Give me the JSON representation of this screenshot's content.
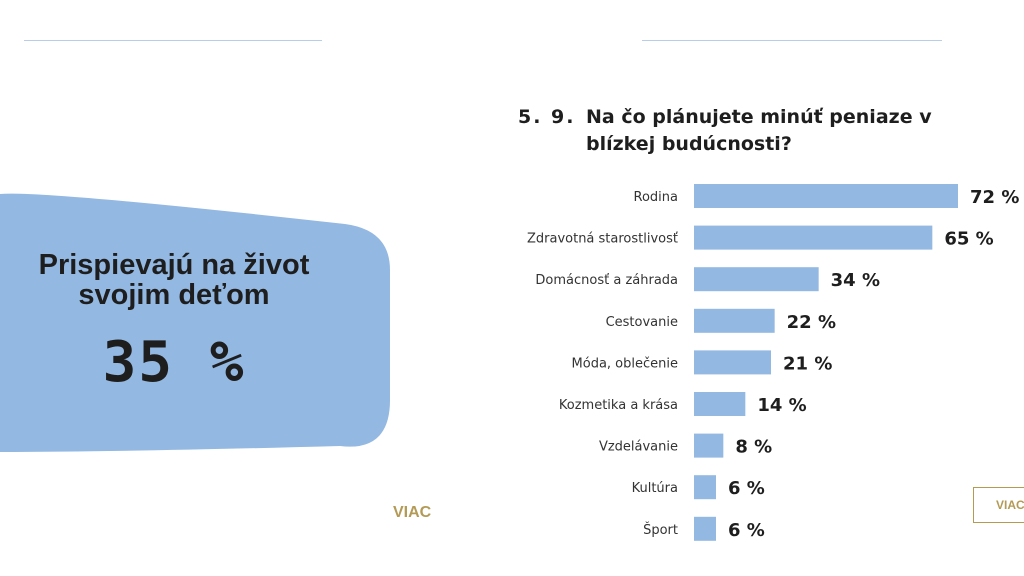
{
  "left_panel": {
    "label_line1": "Prispievajú na život",
    "label_line2": "svojim deťom",
    "value": "35 %",
    "more_link": "VIAC",
    "shape_color": "#93b8e2"
  },
  "right_panel": {
    "more_button": "VIAC"
  },
  "chart_data": {
    "type": "bar",
    "orientation": "horizontal",
    "number": "5. 9.",
    "title": "Na čo plánujete minúť peniaze v blízkej budúcnosti?",
    "categories": [
      "Rodina",
      "Zdravotná starostlivosť",
      "Domácnosť a záhrada",
      "Cestovanie",
      "Móda, oblečenie",
      "Kozmetika a krása",
      "Vzdelávanie",
      "Kultúra",
      "Šport"
    ],
    "values": [
      72,
      65,
      34,
      22,
      21,
      14,
      8,
      6,
      6
    ],
    "value_labels": [
      "72 %",
      "65 %",
      "34 %",
      "22 %",
      "21 %",
      "14 %",
      "8 %",
      "6 %",
      "6 %"
    ],
    "xlim": [
      0,
      100
    ],
    "bar_color": "#93b8e2",
    "grid": false,
    "legend": false
  }
}
